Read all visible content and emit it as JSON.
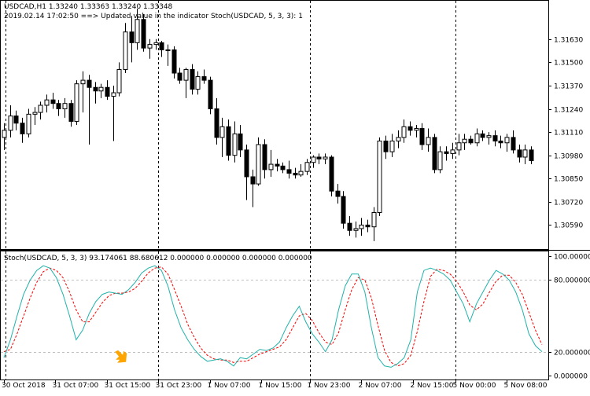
{
  "main_chart": {
    "title": "USDCAD,H1  1.33240 1.33363 1.33240 1.33348",
    "log_message": "2019.02.14 17:02:50 ==>  Updated value in the indicator Stoch(USDCAD, 5, 3, 3): 1",
    "symbol": "USDCAD",
    "timeframe": "H1"
  },
  "indicator_window": {
    "title": "Stoch(USDCAD, 5, 3, 3) 93.174061 88.680612 0.000000 0.000000 0.000000 0.000000"
  },
  "colors": {
    "main_line": "#20b2aa",
    "signal_line": "#ff0000",
    "arrow": "#ffa500",
    "candle_bull_fill": "#ffffff",
    "candle_bear_fill": "#000000",
    "level_line": "#c0c0c0"
  },
  "chart_data": [
    {
      "type": "candlestick",
      "title": "",
      "price_range": [
        1.3046,
        1.3184
      ],
      "y_ticks": [
        "1.31630",
        "1.31500",
        "1.31370",
        "1.31240",
        "1.31110",
        "1.30980",
        "1.30850",
        "1.30720",
        "1.30590"
      ],
      "x_ticks": [
        "30 Oct 2018",
        "31 Oct 07:00",
        "31 Oct 15:00",
        "31 Oct 23:00",
        "1 Nov 07:00",
        "1 Nov 15:00",
        "1 Nov 23:00",
        "2 Nov 07:00",
        "2 Nov 15:00",
        "5 Nov 00:00",
        "5 Nov 08:00"
      ],
      "period_separators": [
        "30 Oct",
        "31 Oct",
        "1 Nov",
        "2 Nov",
        "5 Nov"
      ],
      "candles": [
        {
          "o": 1.3108,
          "h": 1.3116,
          "l": 1.3101,
          "c": 1.3112
        },
        {
          "o": 1.3112,
          "h": 1.3126,
          "l": 1.3108,
          "c": 1.312
        },
        {
          "o": 1.312,
          "h": 1.3123,
          "l": 1.3112,
          "c": 1.3116
        },
        {
          "o": 1.3116,
          "h": 1.3119,
          "l": 1.3105,
          "c": 1.311
        },
        {
          "o": 1.311,
          "h": 1.3124,
          "l": 1.3108,
          "c": 1.3121
        },
        {
          "o": 1.3121,
          "h": 1.3125,
          "l": 1.3115,
          "c": 1.3122
        },
        {
          "o": 1.3122,
          "h": 1.3128,
          "l": 1.3118,
          "c": 1.3126
        },
        {
          "o": 1.3126,
          "h": 1.3132,
          "l": 1.3122,
          "c": 1.3129
        },
        {
          "o": 1.3129,
          "h": 1.3133,
          "l": 1.3124,
          "c": 1.3127
        },
        {
          "o": 1.3127,
          "h": 1.3129,
          "l": 1.312,
          "c": 1.3124
        },
        {
          "o": 1.3124,
          "h": 1.313,
          "l": 1.3119,
          "c": 1.3127
        },
        {
          "o": 1.3127,
          "h": 1.3129,
          "l": 1.3114,
          "c": 1.3117
        },
        {
          "o": 1.3117,
          "h": 1.314,
          "l": 1.3115,
          "c": 1.3138
        },
        {
          "o": 1.3138,
          "h": 1.3145,
          "l": 1.3122,
          "c": 1.314
        },
        {
          "o": 1.314,
          "h": 1.3143,
          "l": 1.3104,
          "c": 1.3136
        },
        {
          "o": 1.3136,
          "h": 1.3139,
          "l": 1.3127,
          "c": 1.3134
        },
        {
          "o": 1.3134,
          "h": 1.3138,
          "l": 1.313,
          "c": 1.3136
        },
        {
          "o": 1.3136,
          "h": 1.314,
          "l": 1.3129,
          "c": 1.3131
        },
        {
          "o": 1.3131,
          "h": 1.3137,
          "l": 1.3106,
          "c": 1.3133
        },
        {
          "o": 1.3133,
          "h": 1.315,
          "l": 1.3131,
          "c": 1.3146
        },
        {
          "o": 1.3146,
          "h": 1.3172,
          "l": 1.3144,
          "c": 1.3167
        },
        {
          "o": 1.3167,
          "h": 1.3176,
          "l": 1.315,
          "c": 1.3161
        },
        {
          "o": 1.3161,
          "h": 1.318,
          "l": 1.3157,
          "c": 1.3174
        },
        {
          "o": 1.3174,
          "h": 1.3177,
          "l": 1.3156,
          "c": 1.3158
        },
        {
          "o": 1.3158,
          "h": 1.3163,
          "l": 1.3152,
          "c": 1.316
        },
        {
          "o": 1.316,
          "h": 1.3163,
          "l": 1.3157,
          "c": 1.3161
        },
        {
          "o": 1.3161,
          "h": 1.3162,
          "l": 1.3153,
          "c": 1.3157
        },
        {
          "o": 1.3157,
          "h": 1.316,
          "l": 1.3148,
          "c": 1.3157
        },
        {
          "o": 1.3157,
          "h": 1.3159,
          "l": 1.3141,
          "c": 1.3144
        },
        {
          "o": 1.3144,
          "h": 1.3147,
          "l": 1.3138,
          "c": 1.314
        },
        {
          "o": 1.314,
          "h": 1.3147,
          "l": 1.313,
          "c": 1.3146
        },
        {
          "o": 1.3146,
          "h": 1.3149,
          "l": 1.3132,
          "c": 1.3135
        },
        {
          "o": 1.3135,
          "h": 1.3145,
          "l": 1.3132,
          "c": 1.3142
        },
        {
          "o": 1.3142,
          "h": 1.3146,
          "l": 1.3138,
          "c": 1.314
        },
        {
          "o": 1.314,
          "h": 1.3142,
          "l": 1.3121,
          "c": 1.3124
        },
        {
          "o": 1.3124,
          "h": 1.313,
          "l": 1.3104,
          "c": 1.3108
        },
        {
          "o": 1.3108,
          "h": 1.3119,
          "l": 1.3097,
          "c": 1.3114
        },
        {
          "o": 1.3114,
          "h": 1.3118,
          "l": 1.3095,
          "c": 1.3098
        },
        {
          "o": 1.3098,
          "h": 1.3117,
          "l": 1.3094,
          "c": 1.311
        },
        {
          "o": 1.311,
          "h": 1.3115,
          "l": 1.3097,
          "c": 1.3101
        },
        {
          "o": 1.3101,
          "h": 1.3104,
          "l": 1.3073,
          "c": 1.3086
        },
        {
          "o": 1.3086,
          "h": 1.309,
          "l": 1.3069,
          "c": 1.3082
        },
        {
          "o": 1.3082,
          "h": 1.3108,
          "l": 1.3081,
          "c": 1.3104
        },
        {
          "o": 1.3104,
          "h": 1.3107,
          "l": 1.3085,
          "c": 1.309
        },
        {
          "o": 1.309,
          "h": 1.3101,
          "l": 1.3086,
          "c": 1.3093
        },
        {
          "o": 1.3093,
          "h": 1.3096,
          "l": 1.3089,
          "c": 1.3092
        },
        {
          "o": 1.3092,
          "h": 1.3094,
          "l": 1.3088,
          "c": 1.309
        },
        {
          "o": 1.309,
          "h": 1.3095,
          "l": 1.3085,
          "c": 1.3088
        },
        {
          "o": 1.3088,
          "h": 1.3091,
          "l": 1.3085,
          "c": 1.3087
        },
        {
          "o": 1.3087,
          "h": 1.3093,
          "l": 1.3086,
          "c": 1.3089
        },
        {
          "o": 1.3089,
          "h": 1.3096,
          "l": 1.3087,
          "c": 1.3094
        },
        {
          "o": 1.3094,
          "h": 1.3098,
          "l": 1.3091,
          "c": 1.3097
        },
        {
          "o": 1.3097,
          "h": 1.3099,
          "l": 1.3093,
          "c": 1.3096
        },
        {
          "o": 1.3096,
          "h": 1.3099,
          "l": 1.3093,
          "c": 1.3097
        },
        {
          "o": 1.3097,
          "h": 1.3098,
          "l": 1.3075,
          "c": 1.3078
        },
        {
          "o": 1.3078,
          "h": 1.3082,
          "l": 1.3071,
          "c": 1.3075
        },
        {
          "o": 1.3075,
          "h": 1.3078,
          "l": 1.3057,
          "c": 1.306
        },
        {
          "o": 1.306,
          "h": 1.3064,
          "l": 1.3053,
          "c": 1.3056
        },
        {
          "o": 1.3056,
          "h": 1.3061,
          "l": 1.3052,
          "c": 1.3057
        },
        {
          "o": 1.3057,
          "h": 1.3063,
          "l": 1.3053,
          "c": 1.3059
        },
        {
          "o": 1.3059,
          "h": 1.3062,
          "l": 1.3055,
          "c": 1.3058
        },
        {
          "o": 1.3058,
          "h": 1.3069,
          "l": 1.305,
          "c": 1.3066
        },
        {
          "o": 1.3066,
          "h": 1.3108,
          "l": 1.3064,
          "c": 1.3106
        },
        {
          "o": 1.3106,
          "h": 1.3109,
          "l": 1.3096,
          "c": 1.31
        },
        {
          "o": 1.31,
          "h": 1.311,
          "l": 1.3097,
          "c": 1.3106
        },
        {
          "o": 1.3106,
          "h": 1.3112,
          "l": 1.3102,
          "c": 1.3108
        },
        {
          "o": 1.3108,
          "h": 1.3118,
          "l": 1.3105,
          "c": 1.3114
        },
        {
          "o": 1.3114,
          "h": 1.3117,
          "l": 1.3109,
          "c": 1.3112
        },
        {
          "o": 1.3112,
          "h": 1.3115,
          "l": 1.3108,
          "c": 1.3113
        },
        {
          "o": 1.3113,
          "h": 1.3116,
          "l": 1.3101,
          "c": 1.3104
        },
        {
          "o": 1.3104,
          "h": 1.3113,
          "l": 1.31,
          "c": 1.3108
        },
        {
          "o": 1.3108,
          "h": 1.311,
          "l": 1.3088,
          "c": 1.309
        },
        {
          "o": 1.309,
          "h": 1.3103,
          "l": 1.3088,
          "c": 1.31
        },
        {
          "o": 1.31,
          "h": 1.3103,
          "l": 1.3095,
          "c": 1.3099
        },
        {
          "o": 1.3099,
          "h": 1.3105,
          "l": 1.3096,
          "c": 1.3101
        },
        {
          "o": 1.3101,
          "h": 1.311,
          "l": 1.3098,
          "c": 1.3105
        },
        {
          "o": 1.3105,
          "h": 1.311,
          "l": 1.3101,
          "c": 1.3107
        },
        {
          "o": 1.3107,
          "h": 1.3109,
          "l": 1.3104,
          "c": 1.3105
        },
        {
          "o": 1.3105,
          "h": 1.3113,
          "l": 1.3103,
          "c": 1.311
        },
        {
          "o": 1.311,
          "h": 1.3112,
          "l": 1.3106,
          "c": 1.3108
        },
        {
          "o": 1.3108,
          "h": 1.3111,
          "l": 1.3104,
          "c": 1.3109
        },
        {
          "o": 1.3109,
          "h": 1.3112,
          "l": 1.3103,
          "c": 1.3106
        },
        {
          "o": 1.3106,
          "h": 1.3109,
          "l": 1.3102,
          "c": 1.3105
        },
        {
          "o": 1.3105,
          "h": 1.311,
          "l": 1.31,
          "c": 1.3108
        },
        {
          "o": 1.3108,
          "h": 1.3112,
          "l": 1.3099,
          "c": 1.3101
        },
        {
          "o": 1.3101,
          "h": 1.3104,
          "l": 1.3094,
          "c": 1.3097
        },
        {
          "o": 1.3097,
          "h": 1.3104,
          "l": 1.3093,
          "c": 1.3101
        },
        {
          "o": 1.3101,
          "h": 1.3103,
          "l": 1.3093,
          "c": 1.3095
        }
      ]
    },
    {
      "type": "line",
      "title": "",
      "ylim": [
        0,
        100
      ],
      "y_ticks": [
        "100.000000",
        "80.000000",
        "20.000000",
        "0.000000"
      ],
      "levels": [
        80,
        20
      ],
      "series": [
        {
          "name": "",
          "values": [
            15,
            30,
            50,
            68,
            80,
            88,
            92,
            90,
            82,
            68,
            50,
            30,
            38,
            52,
            62,
            68,
            70,
            69,
            68,
            72,
            78,
            86,
            90,
            92,
            88,
            75,
            55,
            40,
            30,
            22,
            16,
            12,
            13,
            14,
            12,
            8,
            15,
            14,
            18,
            22,
            21,
            23,
            28,
            40,
            50,
            58,
            45,
            35,
            28,
            20,
            30,
            55,
            75,
            85,
            85,
            70,
            40,
            15,
            8,
            7,
            10,
            15,
            30,
            70,
            88,
            90,
            88,
            85,
            80,
            70,
            60,
            45,
            60,
            70,
            80,
            88,
            85,
            80,
            70,
            55,
            35,
            25,
            20
          ]
        },
        {
          "name": "",
          "values": [
            20,
            22,
            35,
            50,
            65,
            78,
            87,
            90,
            88,
            82,
            70,
            55,
            45,
            45,
            53,
            61,
            67,
            69,
            69,
            70,
            73,
            79,
            86,
            90,
            91,
            85,
            72,
            58,
            43,
            32,
            23,
            17,
            14,
            13,
            13,
            11,
            12,
            12,
            15,
            18,
            20,
            22,
            24,
            30,
            40,
            50,
            52,
            46,
            36,
            28,
            26,
            36,
            55,
            72,
            82,
            80,
            65,
            42,
            21,
            11,
            8,
            10,
            17,
            37,
            62,
            83,
            89,
            88,
            85,
            79,
            70,
            59,
            55,
            60,
            70,
            79,
            84,
            84,
            78,
            68,
            53,
            38,
            26
          ]
        }
      ]
    }
  ],
  "arrow_signal": {
    "index": 18,
    "value": 12
  }
}
